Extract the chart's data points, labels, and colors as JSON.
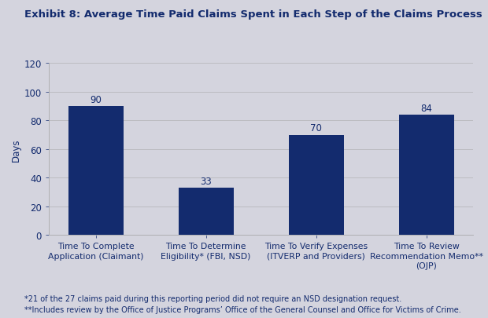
{
  "title": "Exhibit 8: Average Time Paid Claims Spent in Each Step of the Claims Process",
  "categories": [
    "Time To Complete\nApplication (Claimant)",
    "Time To Determine\nEligibility* (FBI, NSD)",
    "Time To Verify Expenses\n(ITVERP and Providers)",
    "Time To Review\nRecommendation Memo**\n(OJP)"
  ],
  "values": [
    90,
    33,
    70,
    84
  ],
  "bar_color": "#132b6e",
  "ylabel": "Days",
  "ylim": [
    0,
    120
  ],
  "yticks": [
    0,
    20,
    40,
    60,
    80,
    100,
    120
  ],
  "footnote1": "*21 of the 27 claims paid during this reporting period did not require an NSD designation request.",
  "footnote2": "**Includes review by the Office of Justice Programs’ Office of the General Counsel and Office for Victims of Crime.",
  "title_fontsize": 9.5,
  "label_fontsize": 7.8,
  "value_fontsize": 8.5,
  "ylabel_fontsize": 8.5,
  "ytick_fontsize": 8.5,
  "footnote_fontsize": 7.0,
  "bg_light": "#e8e8ee",
  "bg_dark": "#c0c0cc"
}
